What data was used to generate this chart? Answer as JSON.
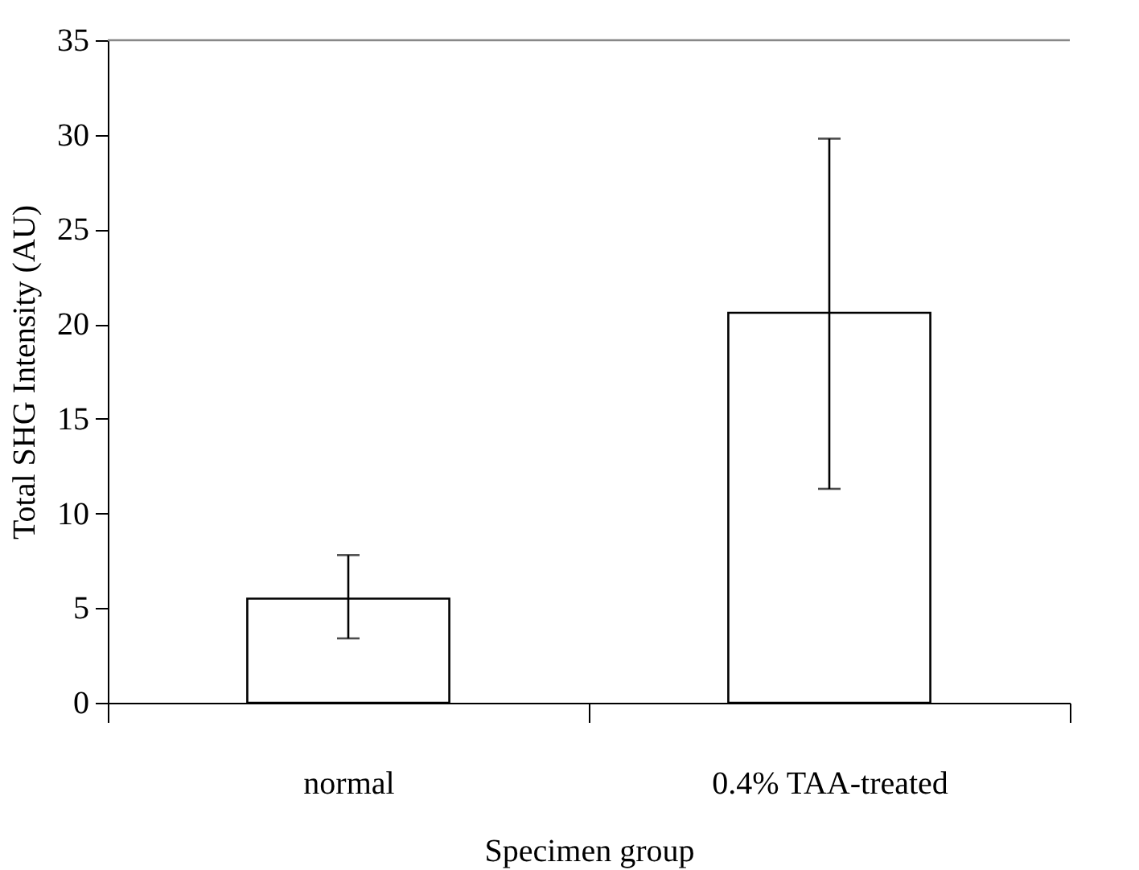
{
  "chart_data": {
    "type": "bar",
    "xlabel": "Specimen group",
    "ylabel": "Total SHG Intensity (AU)",
    "categories": [
      "normal",
      "0.4% TAA-treated"
    ],
    "values": [
      5.5,
      20.6
    ],
    "errors": [
      [
        3.4,
        7.8
      ],
      [
        11.3,
        29.8
      ]
    ],
    "color": "#ffffff",
    "ylim": [
      0,
      35
    ],
    "yticks": [
      0,
      5,
      10,
      15,
      20,
      25,
      30,
      35
    ],
    "grid": false
  }
}
